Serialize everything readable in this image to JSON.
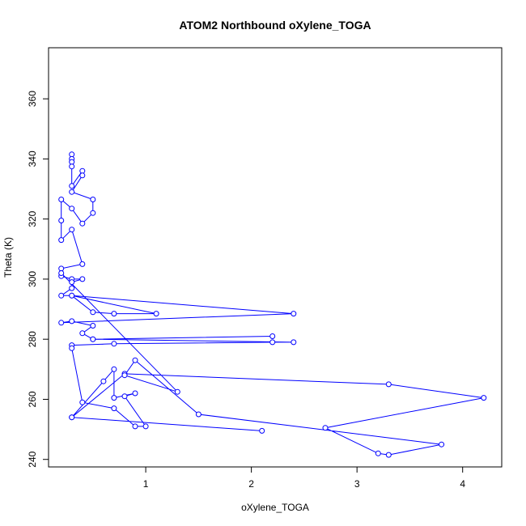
{
  "chart_data": {
    "type": "line",
    "title": "ATOM2 Northbound oXylene_TOGA",
    "xlabel": "oXylene_TOGA",
    "ylabel": "Theta (K)",
    "xlim": [
      0.08,
      4.37
    ],
    "ylim": [
      237.5,
      377
    ],
    "x_ticks": [
      1,
      2,
      3,
      4
    ],
    "y_ticks": [
      240,
      260,
      280,
      300,
      320,
      340,
      360
    ],
    "grid": false,
    "legend": "none",
    "series_color": "#0000ff",
    "marker": "open-circle",
    "points": [
      [
        0.3,
        341.5
      ],
      [
        0.3,
        340
      ],
      [
        0.3,
        339
      ],
      [
        0.3,
        337.5
      ],
      [
        0.3,
        331
      ],
      [
        0.4,
        336
      ],
      [
        0.4,
        334.5
      ],
      [
        0.3,
        329
      ],
      [
        0.5,
        326.5
      ],
      [
        0.5,
        322
      ],
      [
        0.4,
        318.5
      ],
      [
        0.3,
        323.5
      ],
      [
        0.2,
        326.5
      ],
      [
        0.2,
        319.5
      ],
      [
        0.2,
        313
      ],
      [
        0.3,
        316.5
      ],
      [
        0.4,
        305
      ],
      [
        0.2,
        303.5
      ],
      [
        0.2,
        301
      ],
      [
        0.3,
        300
      ],
      [
        0.4,
        300
      ],
      [
        0.3,
        299
      ],
      [
        0.3,
        297
      ],
      [
        0.2,
        294.5
      ],
      [
        0.3,
        294.5
      ],
      [
        0.5,
        289
      ],
      [
        0.7,
        288.5
      ],
      [
        1.1,
        288.5
      ],
      [
        0.3,
        294.5
      ],
      [
        2.4,
        288.5
      ],
      [
        0.2,
        285.5
      ],
      [
        0.3,
        286
      ],
      [
        0.5,
        284.5
      ],
      [
        0.4,
        282
      ],
      [
        0.5,
        280
      ],
      [
        2.2,
        281
      ],
      [
        0.5,
        280
      ],
      [
        2.4,
        279
      ],
      [
        2.2,
        279
      ],
      [
        0.7,
        278.5
      ],
      [
        0.3,
        278
      ],
      [
        0.3,
        277
      ],
      [
        0.4,
        259
      ],
      [
        0.7,
        257
      ],
      [
        0.9,
        251
      ],
      [
        1.0,
        251
      ],
      [
        0.8,
        261
      ],
      [
        0.9,
        262
      ],
      [
        0.7,
        260.5
      ],
      [
        0.7,
        270
      ],
      [
        0.6,
        266
      ],
      [
        0.3,
        254
      ],
      [
        2.1,
        249.5
      ],
      [
        0.3,
        254
      ],
      [
        0.8,
        268.5
      ],
      [
        3.3,
        265
      ],
      [
        4.2,
        260.5
      ],
      [
        2.7,
        250.5
      ],
      [
        3.2,
        242
      ],
      [
        3.3,
        241.5
      ],
      [
        3.8,
        245
      ],
      [
        1.5,
        255
      ],
      [
        0.9,
        273
      ],
      [
        0.8,
        268
      ],
      [
        1.3,
        262.5
      ],
      [
        0.2,
        302
      ]
    ]
  }
}
